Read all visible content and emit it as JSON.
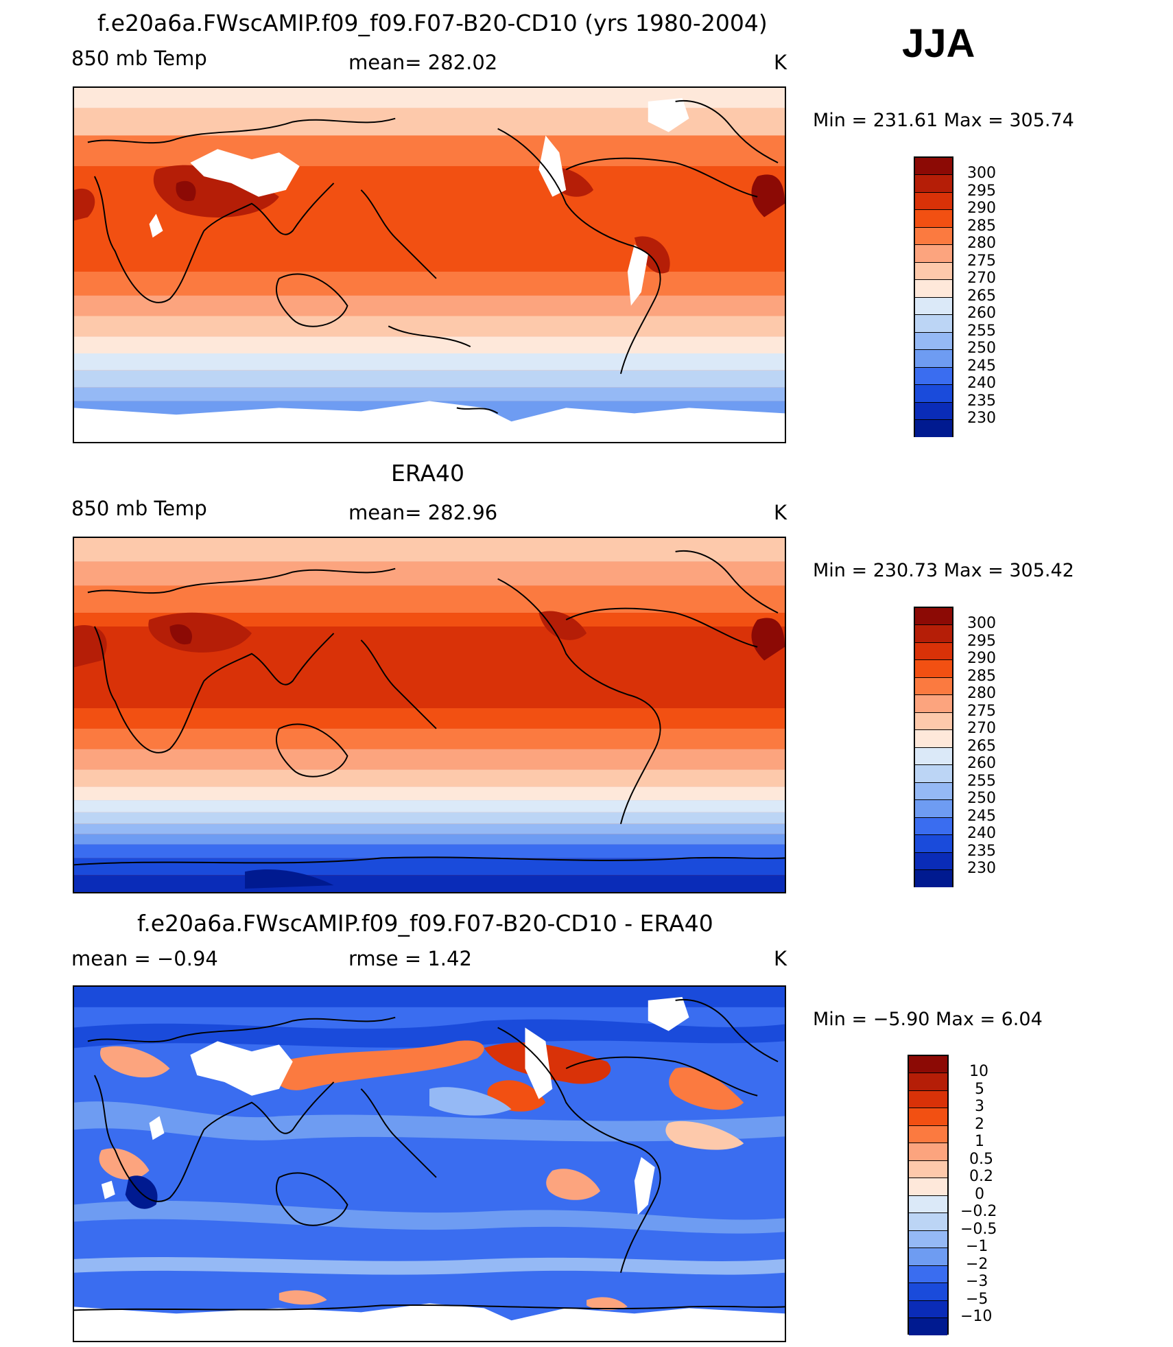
{
  "page": {
    "season": "JJA"
  },
  "panels": [
    {
      "title": "f.e20a6a.FWscAMIP.f09_f09.F07-B20-CD10 (yrs 1980-2004)",
      "left_label": "850 mb Temp",
      "center_label": "mean= 282.02",
      "units": "K",
      "minmax": "Min  =  231.61  Max  =  305.74",
      "colorbar": {
        "labels": [
          "300",
          "295",
          "290",
          "285",
          "280",
          "275",
          "270",
          "265",
          "260",
          "255",
          "250",
          "245",
          "240",
          "235",
          "230"
        ],
        "colors": [
          "#8c0a05",
          "#b51e07",
          "#d93208",
          "#f25012",
          "#fb7a40",
          "#fca47e",
          "#fdc9ab",
          "#fee8da",
          "#dbe9f8",
          "#bcd5f5",
          "#95b9f5",
          "#6e9cf2",
          "#3a6df0",
          "#1a4bdb",
          "#0a2cb8",
          "#001a90"
        ]
      }
    },
    {
      "title": "ERA40",
      "left_label": "850 mb Temp",
      "center_label": "mean= 282.96",
      "units": "K",
      "minmax": "Min  =  230.73  Max  =  305.42",
      "colorbar": {
        "labels": [
          "300",
          "295",
          "290",
          "285",
          "280",
          "275",
          "270",
          "265",
          "260",
          "255",
          "250",
          "245",
          "240",
          "235",
          "230"
        ],
        "colors": [
          "#8c0a05",
          "#b51e07",
          "#d93208",
          "#f25012",
          "#fb7a40",
          "#fca47e",
          "#fdc9ab",
          "#fee8da",
          "#dbe9f8",
          "#bcd5f5",
          "#95b9f5",
          "#6e9cf2",
          "#3a6df0",
          "#1a4bdb",
          "#0a2cb8",
          "#001a90"
        ]
      }
    },
    {
      "title": "f.e20a6a.FWscAMIP.f09_f09.F07-B20-CD10 - ERA40",
      "left_label": "mean  =   −0.94",
      "center_label": "rmse  =    1.42",
      "units": "K",
      "minmax": "Min  =   −5.90  Max  =     6.04",
      "colorbar": {
        "labels": [
          "10",
          "5",
          "3",
          "2",
          "1",
          "0.5",
          "0.2",
          "0",
          "−0.2",
          "−0.5",
          "−1",
          "−2",
          "−3",
          "−5",
          "−10"
        ],
        "colors": [
          "#8c0a05",
          "#b51e07",
          "#d93208",
          "#f25012",
          "#fb7a40",
          "#fca47e",
          "#fdc9ab",
          "#fee8da",
          "#dbe9f8",
          "#bcd5f5",
          "#95b9f5",
          "#6e9cf2",
          "#3a6df0",
          "#1a4bdb",
          "#0a2cb8",
          "#001a90"
        ]
      }
    }
  ]
}
